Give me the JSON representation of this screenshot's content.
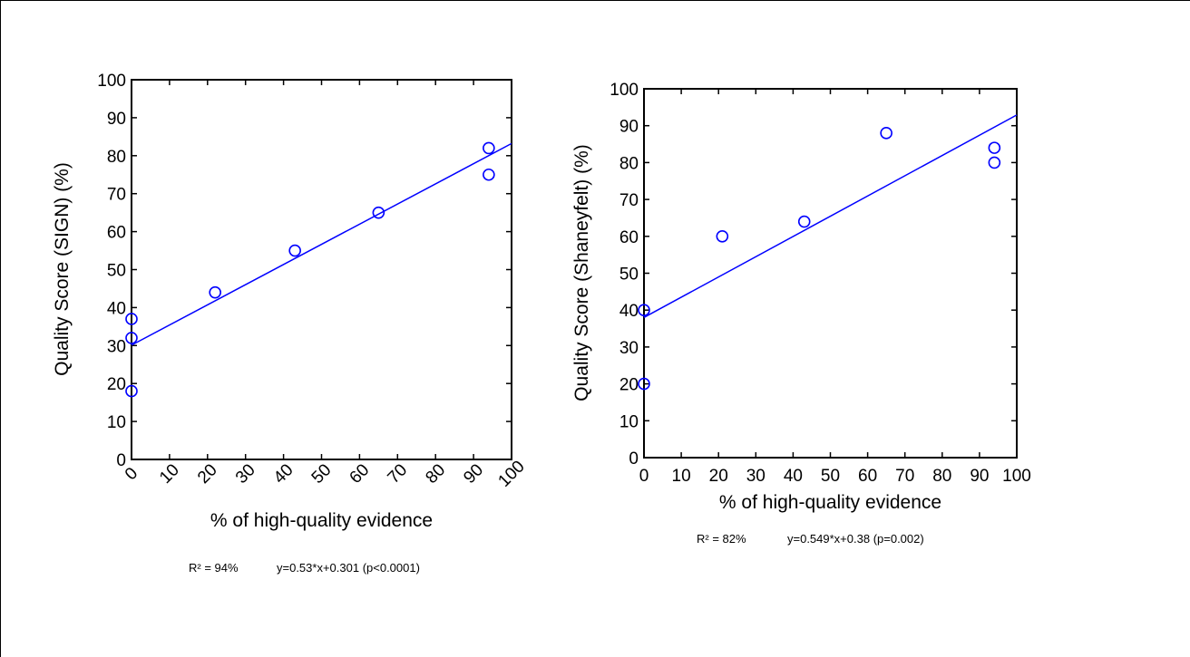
{
  "chart_data": [
    {
      "type": "scatter",
      "xlabel": "% of high-quality evidence",
      "ylabel": "Quality Score (SIGN) (%)",
      "xlim": [
        0,
        100
      ],
      "ylim": [
        0,
        100
      ],
      "xticks": [
        "0",
        "10",
        "20",
        "30",
        "40",
        "50",
        "60",
        "70",
        "80",
        "90",
        "100"
      ],
      "yticks": [
        "0",
        "10",
        "20",
        "30",
        "40",
        "50",
        "60",
        "70",
        "80",
        "90",
        "100"
      ],
      "x_tick_rotation": "diagonal",
      "points": [
        {
          "x": 0,
          "y": 37
        },
        {
          "x": 0,
          "y": 32
        },
        {
          "x": 0,
          "y": 18
        },
        {
          "x": 22,
          "y": 44
        },
        {
          "x": 43,
          "y": 55
        },
        {
          "x": 65,
          "y": 65
        },
        {
          "x": 94,
          "y": 82
        },
        {
          "x": 94,
          "y": 75
        }
      ],
      "fit_line": {
        "intercept": 30.1,
        "slope": 0.531
      },
      "annotations": {
        "r2": "R² = 94%",
        "equation": "y=0.53*x+0.301 (p<0.0001)"
      },
      "marker_color": "#0000ff",
      "line_color": "#0000ff",
      "grid": false
    },
    {
      "type": "scatter",
      "xlabel": "% of high-quality evidence",
      "ylabel": "Quality Score (Shaneyfelt) (%)",
      "xlim": [
        0,
        100
      ],
      "ylim": [
        0,
        100
      ],
      "xticks": [
        "0",
        "10",
        "20",
        "30",
        "40",
        "50",
        "60",
        "70",
        "80",
        "90",
        "100"
      ],
      "yticks": [
        "0",
        "10",
        "20",
        "30",
        "40",
        "50",
        "60",
        "70",
        "80",
        "90",
        "100"
      ],
      "x_tick_rotation": "none",
      "points": [
        {
          "x": 0,
          "y": 40
        },
        {
          "x": 0,
          "y": 20
        },
        {
          "x": 21,
          "y": 60
        },
        {
          "x": 43,
          "y": 64
        },
        {
          "x": 65,
          "y": 88
        },
        {
          "x": 94,
          "y": 84
        },
        {
          "x": 94,
          "y": 80
        }
      ],
      "fit_line": {
        "intercept": 38.0,
        "slope": 0.549
      },
      "annotations": {
        "r2": "R² = 82%",
        "equation": "y=0.549*x+0.38 (p=0.002)"
      },
      "marker_color": "#0000ff",
      "line_color": "#0000ff",
      "grid": false
    }
  ]
}
